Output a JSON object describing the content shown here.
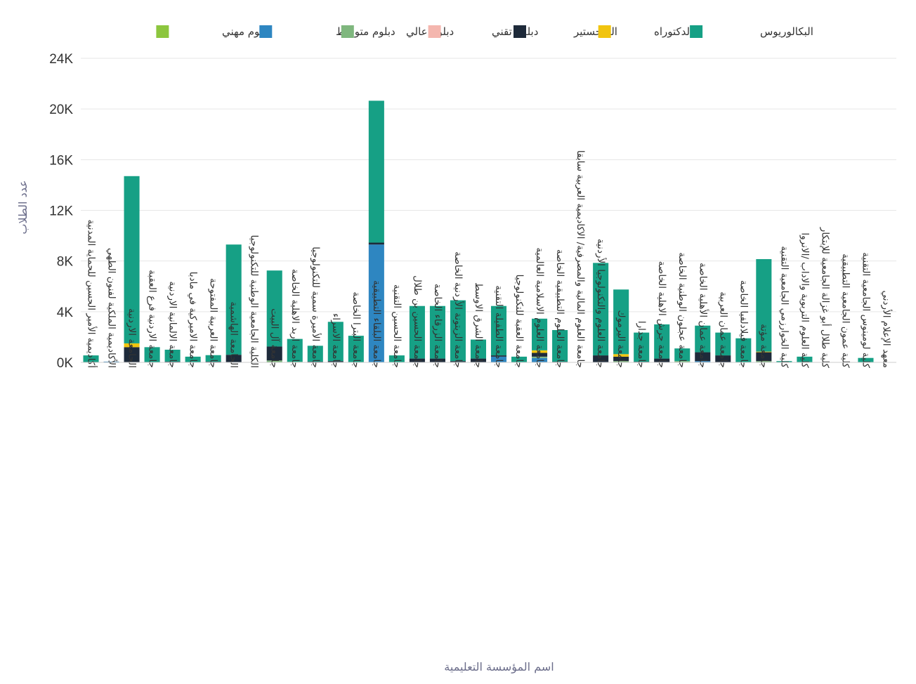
{
  "chart_data": {
    "type": "bar",
    "stacked": true,
    "xlabel": "اسم المؤسسة التعليمية",
    "ylabel": "عدد الطلاب",
    "ylim": [
      0,
      24000
    ],
    "y_ticks": [
      "0K",
      "4K",
      "8K",
      "12K",
      "16K",
      "20K",
      "24K"
    ],
    "grid": true,
    "legend_position": "top-center",
    "categories": [
      "أكاديمية الأمير الحسين للحماية المدنية",
      "الأكاديمية الملكية لفنون الطهي",
      "الجامعة الاردنية",
      "جامعة الاردنية فرع العقبة",
      "جامعة الالمانية الاردنية",
      "جامعة الاميركية في مادبا",
      "جامعة العربية المفتوحة",
      "الجامعة الهاشمية",
      "الكلية الجامعية الوطنية للتكنولوجيا",
      "جامعة آل البيت",
      "جامعة اربد الاهلية الخاصة",
      "جامعة الأميرة سمية للتكنولوجيا",
      "جامعة الاسراء",
      "جامعة البترا الخاصة",
      "جامعة البلقاء التطبيقية",
      "جامعة الحسين التقنية",
      "جامعة الحسين بن طلال",
      "جامعة الزرقاء الخاصة",
      "جامعة الزيتونة الأردنية الخاصة",
      "جامعة الشرق الاوسط",
      "جامعة الطفيلة التقنية",
      "جامعة العقبة للتكنولوجيا",
      "جامعة العلوم الاسلامية العالمية",
      "جامعة العلوم التطبيقية الخاصة",
      "جامعة العلوم المالية والمصرفية/ الاكاديمية العربية سابقا",
      "جامعة العلوم والتكنولوجيا الأردنية",
      "جامعة اليرموك",
      "جامعة جدارا",
      "جامعة جرش الاهلية الخاصة",
      "جامعة عجلون الوطنية الخاصة",
      "جامعة عمان الأهلية الخاصة",
      "جامعة عمان العربية",
      "جامعة فيلادلفيا الخاصة",
      "جامعة مؤتة",
      "كلية الخوارزمي الجامعية التقنية",
      "كلية العلوم التربوية والاداب /الانروا",
      "كلية طلال أبو غزالة الجامعية للإبتكار",
      "كلية عمون الجامعية التطبيقية",
      "كلية لومينوس الجامعية التقنية",
      "معهد الإعلام الأردني"
    ],
    "series": [
      {
        "name": "دبلوم مهني",
        "color": "#8cc63e",
        "values": [
          0,
          0,
          0,
          0,
          0,
          0,
          0,
          0,
          0,
          0,
          0,
          0,
          0,
          0,
          0,
          0,
          0,
          0,
          0,
          0,
          0,
          0,
          0,
          0,
          0,
          0,
          0,
          0,
          0,
          0,
          0,
          0,
          0,
          0,
          0,
          0,
          0,
          0,
          0,
          0
        ]
      },
      {
        "name": "دبلوم متوسط",
        "color": "#2e86c1",
        "values": [
          0,
          60,
          0,
          0,
          0,
          0,
          0,
          0,
          0,
          0,
          0,
          0,
          0,
          0,
          9300,
          0,
          0,
          0,
          0,
          0,
          450,
          0,
          350,
          0,
          0,
          0,
          0,
          0,
          0,
          0,
          100,
          0,
          0,
          0,
          0,
          0,
          0,
          0,
          0,
          0
        ]
      },
      {
        "name": "دبلوم عالي",
        "color": "#7fb77e",
        "values": [
          0,
          0,
          0,
          0,
          0,
          0,
          0,
          0,
          0,
          150,
          50,
          0,
          0,
          0,
          0,
          0,
          0,
          0,
          0,
          0,
          0,
          0,
          100,
          0,
          0,
          0,
          100,
          0,
          0,
          100,
          0,
          0,
          0,
          100,
          0,
          0,
          0,
          0,
          0,
          0
        ]
      },
      {
        "name": "دبلوم تقني",
        "color": "#f4b6ae",
        "values": [
          0,
          0,
          0,
          0,
          0,
          0,
          0,
          0,
          0,
          0,
          0,
          0,
          0,
          0,
          0,
          0,
          0,
          0,
          0,
          0,
          0,
          0,
          0,
          0,
          0,
          0,
          0,
          0,
          0,
          0,
          0,
          0,
          0,
          0,
          0,
          0,
          0,
          0,
          0,
          0
        ]
      },
      {
        "name": "الماجستير",
        "color": "#1e2a3a",
        "values": [
          0,
          0,
          1200,
          0,
          60,
          0,
          60,
          600,
          0,
          1100,
          0,
          60,
          100,
          0,
          150,
          0,
          300,
          300,
          100,
          300,
          100,
          0,
          300,
          50,
          0,
          550,
          350,
          50,
          300,
          0,
          700,
          550,
          0,
          700,
          0,
          0,
          0,
          0,
          0,
          0
        ]
      },
      {
        "name": "الدكتوراه",
        "color": "#f1c40f",
        "values": [
          0,
          0,
          300,
          0,
          0,
          0,
          0,
          0,
          0,
          0,
          0,
          0,
          0,
          0,
          0,
          0,
          0,
          0,
          0,
          0,
          0,
          0,
          200,
          0,
          0,
          0,
          200,
          0,
          0,
          0,
          0,
          0,
          0,
          50,
          0,
          0,
          0,
          0,
          0,
          0
        ]
      },
      {
        "name": "البكالوريوس",
        "color": "#16a085",
        "values": [
          550,
          0,
          13200,
          1200,
          940,
          450,
          510,
          8700,
          0,
          6000,
          1800,
          1250,
          3100,
          2100,
          11200,
          550,
          4150,
          4150,
          4800,
          1500,
          3900,
          450,
          2500,
          2500,
          0,
          7300,
          5100,
          2300,
          2700,
          1000,
          2100,
          1800,
          1900,
          7300,
          100,
          450,
          0,
          0,
          350,
          0
        ]
      }
    ],
    "legend_order": [
      "البكالوريوس",
      "الدكتوراه",
      "الماجستير",
      "دبلوم تقني",
      "دبلوم عالي",
      "دبلوم متوسط",
      "دبلوم مهني"
    ]
  }
}
